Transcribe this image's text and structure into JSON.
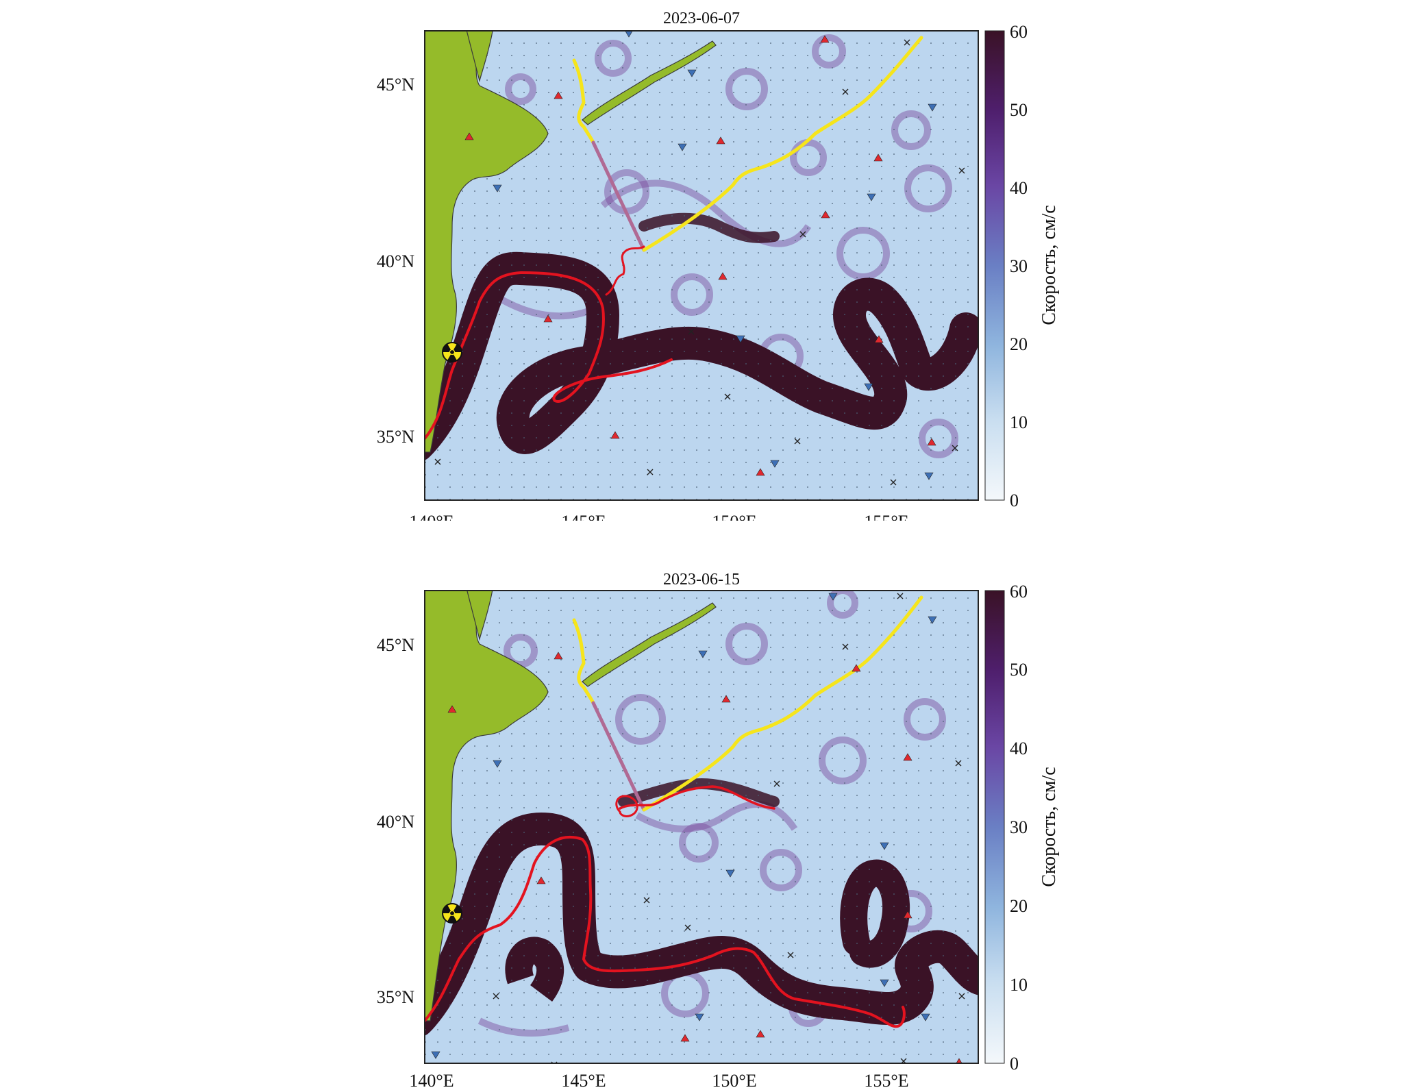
{
  "colorbar": {
    "label": "Скорость, см/с",
    "ticks": [
      "0",
      "10",
      "20",
      "30",
      "40",
      "50",
      "60"
    ],
    "colors": [
      "#f4f8fb",
      "#c9def0",
      "#8fb5de",
      "#6a7fc4",
      "#6a46a4",
      "#4f1f6d",
      "#3a1226"
    ]
  },
  "axes": {
    "lon_ticks": [
      "140°E",
      "145°E",
      "150°E",
      "155°E"
    ],
    "lat_ticks": [
      "45°N",
      "40°N",
      "35°N"
    ]
  },
  "colors": {
    "land": "#95bb2a",
    "ocean": "#bcd6ef",
    "current": "#3a1226",
    "eddy": "#7a4a9c",
    "tracer_red": "#e3131f",
    "tracer_yellow": "#f6e51b",
    "tracer_mauve": "#b06a94",
    "float_up": "#e0282e",
    "float_down": "#3d6fb5",
    "marker_x": "#222222"
  },
  "panels": [
    {
      "id": "top",
      "title": "2023-06-07"
    },
    {
      "id": "bottom",
      "title": "2023-06-15"
    }
  ],
  "legend_icons": {
    "radiation": "radiation-icon",
    "float_up": "triangle-up-icon",
    "float_down": "triangle-down-icon",
    "marker_x": "cross-icon"
  }
}
